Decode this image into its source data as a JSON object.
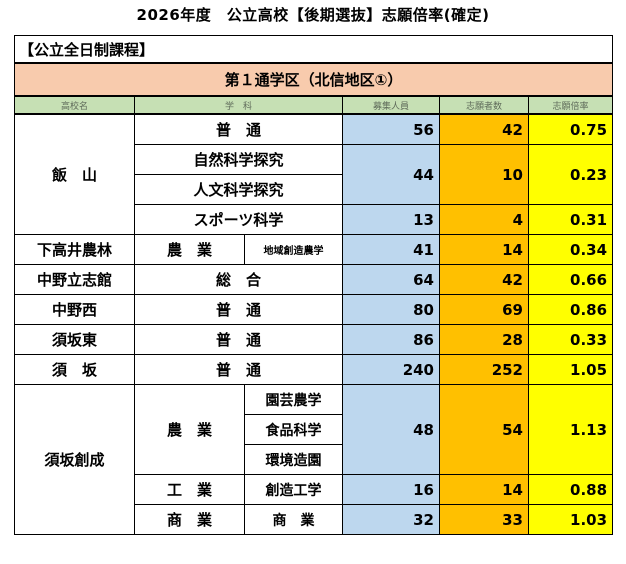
{
  "title": "2026年度　公立高校【後期選抜】志願倍率(確定)",
  "category": "【公立全日制課程】",
  "district": "第１通学区（北信地区①）",
  "headers": {
    "school": "高校名",
    "dept": "学　科",
    "capacity": "募集人員",
    "applicants": "志願者数",
    "ratio": "志願倍率"
  },
  "rows": {
    "iiyama": {
      "school": "飯　山",
      "futsu": {
        "subject": "普　通",
        "capacity": "56",
        "applicants": "42",
        "ratio": "0.75"
      },
      "science": {
        "course1": "自然科学探究",
        "course2": "人文科学探究",
        "capacity": "44",
        "applicants": "10",
        "ratio": "0.23"
      },
      "sports": {
        "subject": "スポーツ科学",
        "capacity": "13",
        "applicants": "4",
        "ratio": "0.31"
      }
    },
    "shimotakai": {
      "school": "下高井農林",
      "subject": "農　業",
      "course": "地域創造農学",
      "capacity": "41",
      "applicants": "14",
      "ratio": "0.34"
    },
    "nakano_risshikan": {
      "school": "中野立志館",
      "subject": "総　合",
      "capacity": "64",
      "applicants": "42",
      "ratio": "0.66"
    },
    "nakano_nishi": {
      "school": "中野西",
      "subject": "普　通",
      "capacity": "80",
      "applicants": "69",
      "ratio": "0.86"
    },
    "suzaka_higashi": {
      "school": "須坂東",
      "subject": "普　通",
      "capacity": "86",
      "applicants": "28",
      "ratio": "0.33"
    },
    "suzaka": {
      "school": "須　坂",
      "subject": "普　通",
      "capacity": "240",
      "applicants": "252",
      "ratio": "1.05"
    },
    "suzaka_sousei": {
      "school": "須坂創成",
      "agri": {
        "subject": "農　業",
        "course1": "園芸農学",
        "course2": "食品科学",
        "course3": "環境造園",
        "capacity": "48",
        "applicants": "54",
        "ratio": "1.13"
      },
      "eng": {
        "subject": "工　業",
        "course": "創造工学",
        "capacity": "16",
        "applicants": "14",
        "ratio": "0.88"
      },
      "com": {
        "subject": "商　業",
        "course": "商　業",
        "capacity": "32",
        "applicants": "33",
        "ratio": "1.03"
      }
    }
  }
}
